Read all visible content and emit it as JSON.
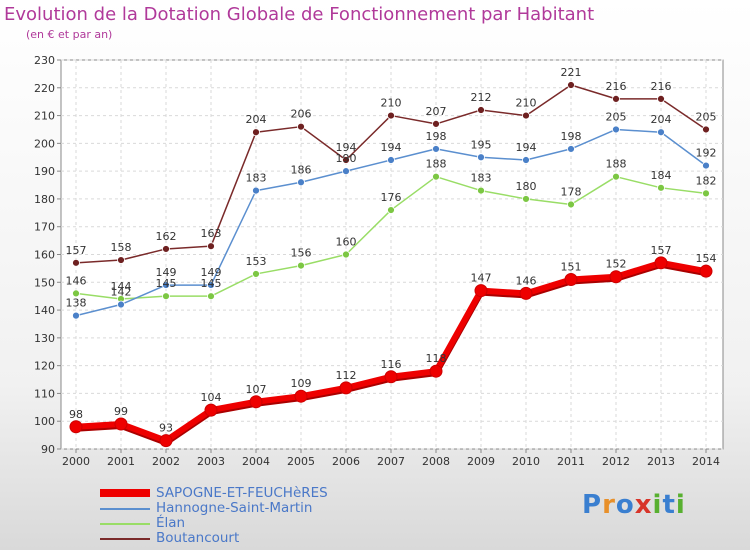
{
  "header": {
    "title": "Evolution de la Dotation Globale de Fonctionnement par Habitant",
    "subtitle": "(en € et par an)"
  },
  "logo": {
    "text": "Proxiti",
    "letters": [
      "P",
      "r",
      "o",
      "x",
      "i",
      "t",
      "i"
    ],
    "colors": [
      "#3a7fd0",
      "#e8902a",
      "#3a7fd0",
      "#d8352a",
      "#58b030",
      "#3a7fd0",
      "#58b030"
    ]
  },
  "chart_data": {
    "type": "line",
    "title": "Evolution de la Dotation Globale de Fonctionnement par Habitant",
    "subtitle": "(en € et par an)",
    "xlabel": "",
    "ylabel": "",
    "ylim": [
      90,
      230
    ],
    "yticks": [
      90,
      100,
      110,
      120,
      130,
      140,
      150,
      160,
      170,
      180,
      190,
      200,
      210,
      220,
      230
    ],
    "categories": [
      "2000",
      "2001",
      "2002",
      "2003",
      "2004",
      "2005",
      "2006",
      "2007",
      "2008",
      "2009",
      "2010",
      "2011",
      "2012",
      "2013",
      "2014"
    ],
    "grid": true,
    "legend_position": "bottom-left",
    "series": [
      {
        "name": "SAPOGNE-ET-FEUCHèRES",
        "color": "#ee0000",
        "line_width": 6,
        "marker_radius": 6,
        "values": [
          98,
          99,
          93,
          104,
          107,
          109,
          112,
          116,
          118,
          147,
          146,
          151,
          152,
          157,
          154
        ],
        "labels": [
          "98",
          "99",
          "93",
          "104",
          "107",
          "109",
          "112",
          "116",
          "118",
          "147",
          "146",
          "151",
          "152",
          "157",
          "154"
        ]
      },
      {
        "name": "Hannogne-Saint-Martin",
        "color": "#5b8fcf",
        "marker_color": "#4a80c8",
        "line_width": 1.5,
        "marker_radius": 3.5,
        "values": [
          138,
          142,
          149,
          149,
          183,
          186,
          190,
          194,
          198,
          195,
          194,
          198,
          205,
          204,
          192
        ],
        "labels": [
          "138",
          "142",
          "149",
          "149",
          "183",
          "186",
          "190",
          "194",
          "198",
          "195",
          "194",
          "198",
          "205",
          "204",
          "192"
        ]
      },
      {
        "name": "Élan",
        "color": "#99dd66",
        "marker_color": "#7cc743",
        "line_width": 1.5,
        "marker_radius": 3.5,
        "values": [
          146,
          144,
          145,
          145,
          153,
          156,
          160,
          176,
          188,
          183,
          180,
          178,
          188,
          184,
          182
        ],
        "labels": [
          "146",
          "144",
          "145",
          "145",
          "153",
          "156",
          "160",
          "176",
          "188",
          "183",
          "180",
          "178",
          "188",
          "184",
          "182"
        ]
      },
      {
        "name": "Boutancourt",
        "color": "#7a2a2a",
        "marker_color": "#6e2020",
        "line_width": 1.5,
        "marker_radius": 3.5,
        "values": [
          157,
          158,
          162,
          163,
          204,
          206,
          194,
          210,
          207,
          212,
          210,
          221,
          216,
          216,
          205
        ],
        "labels": [
          "157",
          "158",
          "162",
          "163",
          "204",
          "206",
          "194",
          "210",
          "207",
          "212",
          "210",
          "221",
          "216",
          "216",
          "205"
        ]
      }
    ]
  }
}
